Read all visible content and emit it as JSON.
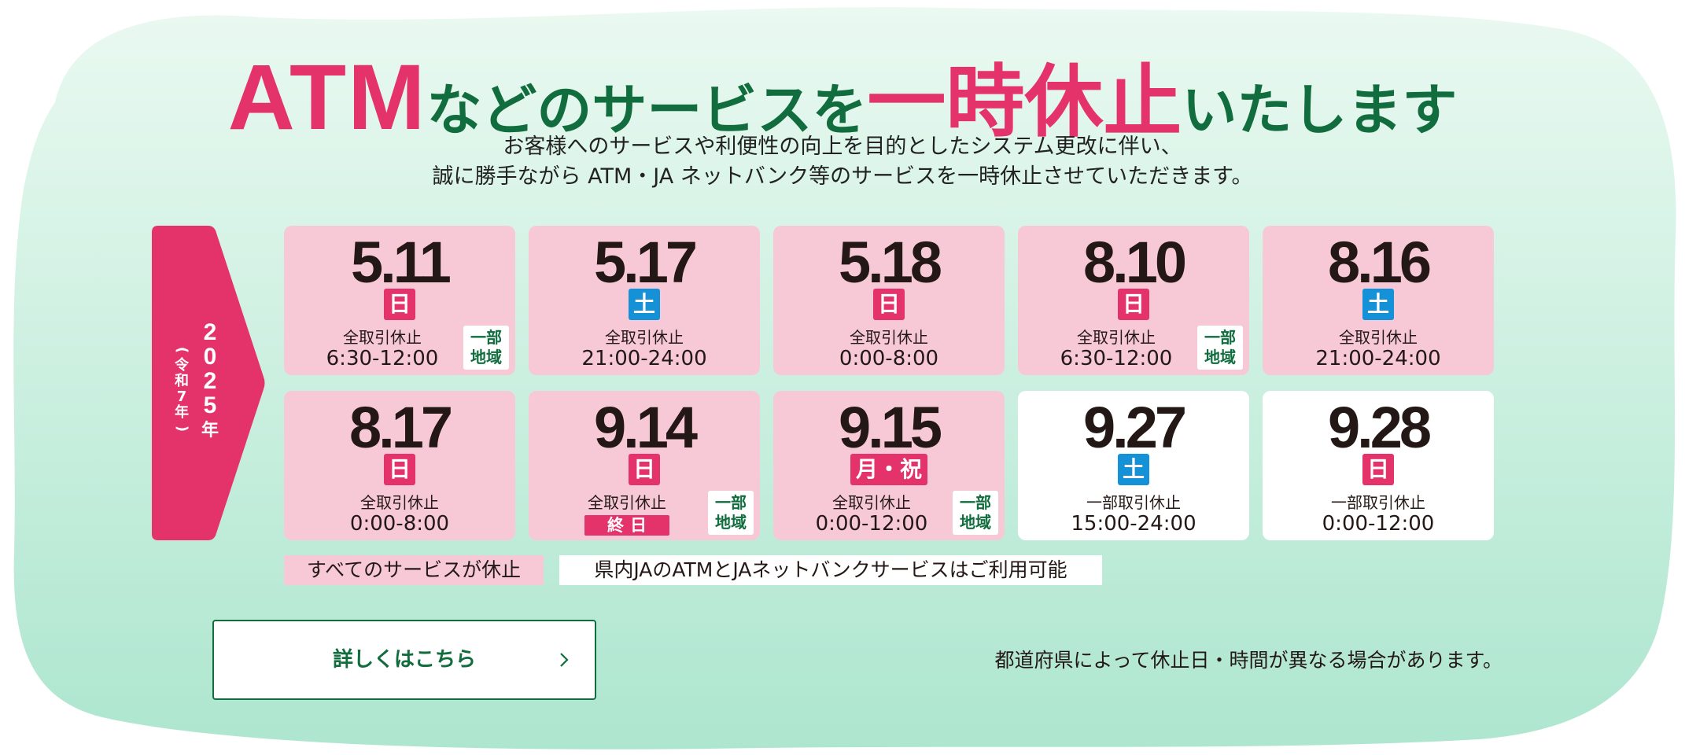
{
  "headline": {
    "part1": "ATM",
    "part2": "などのサービスを",
    "part3": "一時休止",
    "part4": "いたします"
  },
  "lead": {
    "line1": "お客様へのサービスや利便性の向上を目的としたシステム更改に伴い、",
    "line2": "誠に勝手ながら ATM・JA ネットバンク等のサービスを一時休止させていただきます。"
  },
  "year": {
    "digits": [
      "2",
      "0",
      "2",
      "5",
      "年"
    ],
    "reiwa": [
      "(",
      "令",
      "和",
      "7",
      "年",
      ")"
    ]
  },
  "cards": [
    {
      "date": "5.11",
      "day": "日",
      "day_type": "sun",
      "line1": "全取引休止",
      "line2": "6:30-12:00",
      "region": [
        "一部",
        "地域"
      ],
      "bg": "pink"
    },
    {
      "date": "5.17",
      "day": "土",
      "day_type": "sat",
      "line1": "全取引休止",
      "line2": "21:00-24:00",
      "region": null,
      "bg": "pink"
    },
    {
      "date": "5.18",
      "day": "日",
      "day_type": "sun",
      "line1": "全取引休止",
      "line2": "0:00-8:00",
      "region": null,
      "bg": "pink"
    },
    {
      "date": "8.10",
      "day": "日",
      "day_type": "sun",
      "line1": "全取引休止",
      "line2": "6:30-12:00",
      "region": [
        "一部",
        "地域"
      ],
      "bg": "pink"
    },
    {
      "date": "8.16",
      "day": "土",
      "day_type": "sat",
      "line1": "全取引休止",
      "line2": "21:00-24:00",
      "region": null,
      "bg": "pink"
    },
    {
      "date": "8.17",
      "day": "日",
      "day_type": "sun",
      "line1": "全取引休止",
      "line2": "0:00-8:00",
      "region": null,
      "bg": "pink"
    },
    {
      "date": "9.14",
      "day": "日",
      "day_type": "sun",
      "line1": "全取引休止",
      "badge": "終日",
      "region": [
        "一部",
        "地域"
      ],
      "bg": "pink"
    },
    {
      "date": "9.15",
      "day": "月・祝",
      "day_type": "sun",
      "line1": "全取引休止",
      "line2": "0:00-12:00",
      "region": [
        "一部",
        "地域"
      ],
      "bg": "pink"
    },
    {
      "date": "9.27",
      "day": "土",
      "day_type": "sat",
      "line1": "一部取引休止",
      "line2": "15:00-24:00",
      "region": null,
      "bg": "white"
    },
    {
      "date": "9.28",
      "day": "日",
      "day_type": "sun",
      "line1": "一部取引休止",
      "line2": "0:00-12:00",
      "region": null,
      "bg": "white"
    }
  ],
  "legend": {
    "all": "すべてのサービスが休止",
    "partial": "県内JAのATMとJAネットバンクサービスはご利用可能"
  },
  "details_button": {
    "label": "詳しくはこちら",
    "icon": "chevron-right-icon"
  },
  "note": "都道府県によって休止日・時間が異なる場合があります。",
  "colors": {
    "accent_red": "#e4336a",
    "brand_green": "#116c3e",
    "saturday_blue": "#1592d7",
    "card_pink": "#f7c9d6",
    "bg_mint": "#c8efdf"
  }
}
